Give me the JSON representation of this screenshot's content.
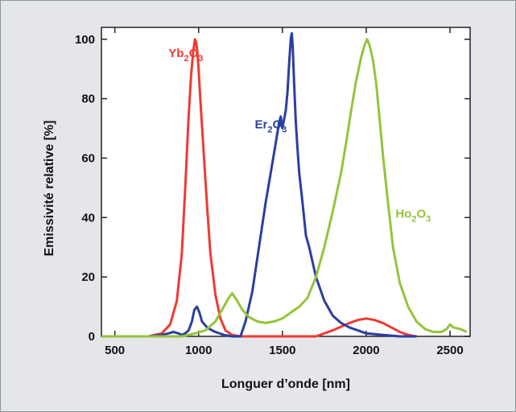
{
  "chart_data": {
    "type": "line",
    "xlabel": "Longuer d’onde [nm]",
    "ylabel": "Emissivité relative [%]",
    "xlim": [
      420,
      2620
    ],
    "ylim": [
      0,
      104
    ],
    "xticks": [
      500,
      1000,
      1500,
      2000,
      2500
    ],
    "yticks": [
      0,
      20,
      40,
      60,
      80,
      100
    ],
    "grid": false,
    "legend": "inline labels",
    "series": [
      {
        "name": "Yb2O3",
        "label_main": "Yb",
        "label_sub": "2",
        "label_tail": "O",
        "label_sub2": "3",
        "color": "#ee3a33",
        "label_at": [
          820,
          94
        ],
        "x": [
          420,
          700,
          780,
          830,
          870,
          900,
          920,
          940,
          955,
          968,
          978,
          985,
          992,
          1000,
          1010,
          1030,
          1050,
          1070,
          1100,
          1130,
          1160,
          1200,
          1250,
          1400,
          1700,
          1800,
          1900,
          1950,
          2000,
          2050,
          2100,
          2150,
          2200,
          2250,
          2300
        ],
        "y": [
          0,
          0,
          1,
          4,
          12,
          28,
          50,
          74,
          88,
          96,
          100,
          99,
          96,
          90,
          80,
          62,
          44,
          28,
          14,
          6,
          2,
          0.5,
          0,
          0,
          0,
          2,
          4.5,
          5.5,
          6,
          5.5,
          4.5,
          3,
          1.5,
          0.5,
          0
        ]
      },
      {
        "name": "Er2O3",
        "label_main": "Er",
        "label_sub": "2",
        "label_tail": "O",
        "label_sub2": "3",
        "color": "#2a3f9e",
        "label_at": [
          1335,
          70
        ],
        "x": [
          420,
          700,
          780,
          820,
          850,
          880,
          900,
          920,
          940,
          960,
          975,
          990,
          1005,
          1020,
          1050,
          1080,
          1100,
          1150,
          1200,
          1250,
          1280,
          1320,
          1360,
          1400,
          1430,
          1460,
          1480,
          1490,
          1500,
          1510,
          1520,
          1530,
          1540,
          1550,
          1556,
          1562,
          1570,
          1580,
          1590,
          1600,
          1620,
          1640,
          1660,
          1700,
          1750,
          1800,
          1850,
          1900,
          1950,
          2000,
          2100,
          2200,
          2300
        ],
        "y": [
          0,
          0,
          0.5,
          1,
          1.5,
          1,
          0.5,
          1,
          2,
          5,
          9,
          10,
          8,
          5,
          3,
          2,
          1.5,
          0.5,
          0,
          0,
          5,
          15,
          30,
          45,
          55,
          65,
          72,
          74,
          70,
          73,
          76,
          82,
          92,
          100,
          102,
          97,
          85,
          72,
          63,
          55,
          45,
          34,
          30,
          20,
          12,
          7,
          4.5,
          3,
          2,
          1,
          0.5,
          0,
          0
        ]
      },
      {
        "name": "Ho2O3",
        "label_main": "Ho",
        "label_sub": "2",
        "label_tail": "O",
        "label_sub2": "3",
        "color": "#94c43a",
        "label_at": [
          2175,
          40
        ],
        "x": [
          420,
          900,
          980,
          1040,
          1100,
          1150,
          1180,
          1200,
          1230,
          1260,
          1300,
          1350,
          1400,
          1450,
          1500,
          1550,
          1600,
          1650,
          1700,
          1750,
          1800,
          1850,
          1880,
          1910,
          1940,
          1970,
          1990,
          2005,
          2020,
          2040,
          2060,
          2080,
          2100,
          2130,
          2160,
          2200,
          2250,
          2300,
          2350,
          2400,
          2450,
          2480,
          2500,
          2520,
          2560,
          2600
        ],
        "y": [
          0,
          0,
          1,
          2,
          5,
          10,
          13,
          14.5,
          12,
          9,
          6.5,
          5,
          4.5,
          5,
          6,
          8,
          10,
          13,
          20,
          30,
          42,
          55,
          65,
          76,
          86,
          94,
          98,
          100,
          98,
          93,
          85,
          73,
          61,
          45,
          30,
          18,
          10,
          5,
          2.5,
          1.5,
          1.5,
          2.5,
          4,
          3,
          2.5,
          1.5
        ]
      }
    ]
  }
}
